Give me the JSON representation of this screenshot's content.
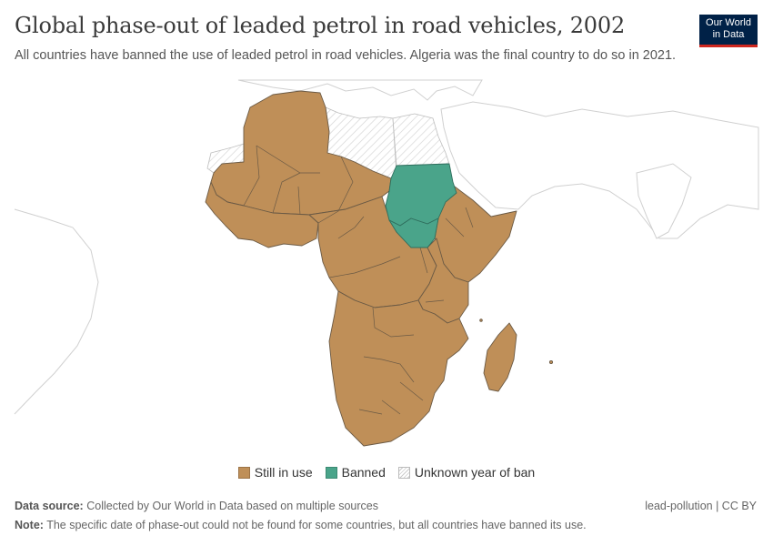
{
  "header": {
    "title": "Global phase-out of leaded petrol in road vehicles, 2002",
    "subtitle": "All countries have banned the use of leaded petrol in road vehicles. Algeria was the final country to do so in 2021.",
    "logo_line1": "Our World",
    "logo_line2": "in Data"
  },
  "legend": {
    "still_in_use": "Still in use",
    "banned": "Banned",
    "unknown": "Unknown year of ban"
  },
  "colors": {
    "still_in_use": "#bf8f58",
    "banned": "#4aa48a",
    "unknown_hatch": "#cccccc",
    "border": "#6b5a45",
    "other_land_border": "#d0d0d0",
    "logo_bg": "#002147",
    "logo_accent": "#ce261e"
  },
  "map_data": {
    "year": 2002,
    "categories": [
      "Still in use",
      "Banned",
      "Unknown year of ban"
    ],
    "banned_regions": [
      "Sudan",
      "South Sudan"
    ],
    "unknown_regions": [
      "Libya",
      "Egypt",
      "Western Sahara"
    ],
    "still_in_use_regions": "Rest of Africa (incl. Madagascar)"
  },
  "footer": {
    "source_label": "Data source:",
    "source_text": "Collected by Our World in Data based on multiple sources",
    "note_label": "Note:",
    "note_text": "The specific date of phase-out could not be found for some countries, but all countries have banned its use.",
    "slug": "lead-pollution | CC BY"
  }
}
